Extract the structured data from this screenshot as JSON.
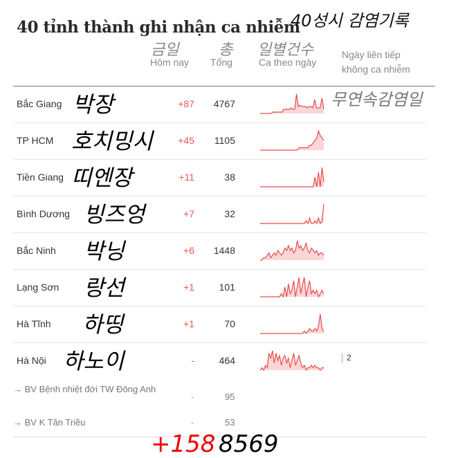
{
  "title": "40 tỉnh thành ghi nhận ca nhiễm",
  "annotations": {
    "title": "40성시 감염기록",
    "today": "금일",
    "total": "총",
    "daily": "일별건수",
    "streak": "무연속감염일",
    "sum_today": "+158",
    "sum_total": "8569"
  },
  "headers": {
    "today": "Hôm nay",
    "total": "Tổng",
    "daily": "Ca theo ngày",
    "streak_1": "Ngày liên tiếp",
    "streak_2": "không ca nhiễm"
  },
  "colors": {
    "accent": "#e84c4c",
    "fill": "#fbd6d6"
  },
  "rows": [
    {
      "name": "Bắc Giang",
      "korean": "박장",
      "today": "+87",
      "total": "4767",
      "spark": [
        0,
        0,
        0,
        0,
        0,
        0,
        0,
        1,
        1,
        1,
        1,
        1,
        1,
        3,
        3,
        3,
        3,
        4,
        3,
        3,
        14,
        5,
        6,
        5,
        5,
        5,
        4,
        5,
        5,
        4,
        10,
        4,
        4,
        4,
        11,
        3
      ]
    },
    {
      "name": "TP HCM",
      "korean": "호치밍시",
      "today": "+45",
      "total": "1105",
      "spark": [
        0,
        0,
        0,
        0,
        0,
        0,
        0,
        0,
        0,
        0,
        0,
        0,
        0,
        0,
        0,
        0,
        0,
        0,
        0,
        0,
        0,
        0,
        1,
        1,
        1,
        1,
        1,
        1,
        2,
        2,
        3,
        4,
        5,
        8,
        6,
        5,
        4
      ]
    },
    {
      "name": "Tiền Giang",
      "korean": "띠엔장",
      "today": "+11",
      "total": "38",
      "spark": [
        0,
        0,
        0,
        0,
        0,
        0,
        0,
        0,
        0,
        0,
        0,
        0,
        0,
        0,
        0,
        0,
        0,
        0,
        0,
        0,
        0,
        0,
        0,
        0,
        0,
        0,
        0,
        0,
        0,
        0,
        0,
        2,
        0,
        3,
        0,
        4,
        1
      ]
    },
    {
      "name": "Bình Dương",
      "korean": "빙즈엉",
      "today": "+7",
      "total": "32",
      "spark": [
        0,
        0,
        0,
        0,
        0,
        0,
        0,
        0,
        0,
        0,
        0,
        0,
        0,
        0,
        0,
        0,
        0,
        0,
        0,
        0,
        0,
        0,
        0,
        0,
        0,
        0,
        1,
        0,
        2,
        0,
        0,
        1,
        0,
        2,
        0,
        1,
        7
      ]
    },
    {
      "name": "Bắc Ninh",
      "korean": "박닝",
      "today": "+6",
      "total": "1448",
      "spark": [
        0,
        0,
        1,
        1,
        2,
        3,
        1,
        2,
        3,
        2,
        4,
        3,
        2,
        3,
        5,
        4,
        6,
        4,
        5,
        3,
        4,
        8,
        5,
        6,
        4,
        5,
        7,
        4,
        3,
        5,
        4,
        3,
        4,
        2,
        3,
        3,
        2
      ]
    },
    {
      "name": "Lạng Sơn",
      "korean": "랑선",
      "today": "+1",
      "total": "101",
      "spark": [
        0,
        0,
        0,
        0,
        0,
        0,
        0,
        0,
        0,
        0,
        0,
        0,
        1,
        0,
        3,
        0,
        4,
        1,
        2,
        5,
        0,
        3,
        6,
        1,
        4,
        6,
        0,
        3,
        5,
        1,
        2,
        1,
        2,
        0,
        1,
        2,
        1
      ]
    },
    {
      "name": "Hà Tĩnh",
      "korean": "하띵",
      "today": "+1",
      "total": "70",
      "spark": [
        0,
        0,
        0,
        0,
        0,
        0,
        0,
        0,
        0,
        0,
        0,
        0,
        0,
        0,
        0,
        0,
        0,
        0,
        0,
        0,
        0,
        0,
        0,
        0,
        0,
        1,
        0,
        1,
        2,
        1,
        1,
        2,
        1,
        3,
        8,
        2,
        1
      ]
    },
    {
      "name": "Hà Nội",
      "korean": "하노이",
      "today": "-",
      "total": "464",
      "streak": "2",
      "spark": [
        0,
        1,
        0,
        2,
        1,
        7,
        5,
        8,
        3,
        7,
        4,
        6,
        2,
        5,
        6,
        3,
        5,
        1,
        4,
        7,
        2,
        4,
        6,
        3,
        1,
        2,
        0,
        1,
        1,
        2,
        1,
        2,
        1,
        1,
        0,
        1,
        1
      ]
    }
  ],
  "subrows": [
    {
      "name": "→ BV Bệnh nhiệt đới TW Đông Anh",
      "today": "-",
      "total": "95"
    },
    {
      "name": "→ BV K Tân Triều",
      "today": "-",
      "total": "53"
    }
  ]
}
